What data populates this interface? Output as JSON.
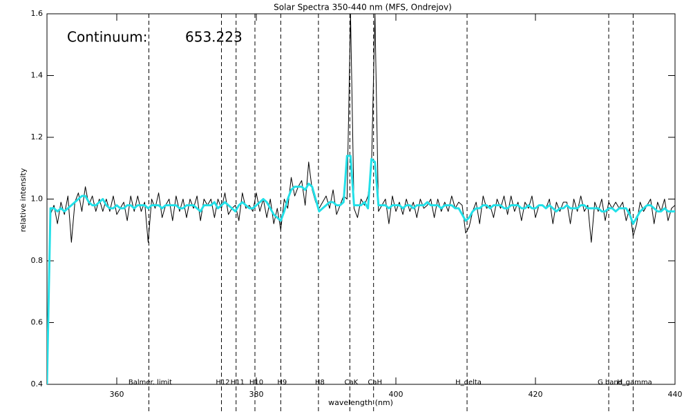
{
  "chart_data": {
    "type": "line",
    "title": "Solar Spectra 350-440 nm (MFS, Ondrejov)",
    "xlabel": "wavelength (nm)",
    "ylabel": "relative intensity",
    "annotations": [
      "Continuum:",
      "653.223"
    ],
    "xlim": [
      350,
      440
    ],
    "xticks": [
      360,
      380,
      400,
      420,
      440
    ],
    "ylim": [
      0.4,
      1.6
    ],
    "yticks": [
      0.4,
      0.6,
      0.8,
      {
        "value": 1,
        "label": "1.0"
      },
      1.2,
      1.4,
      1.6
    ],
    "lines": [
      {
        "label": "Balmer. limit",
        "x": 364.6
      },
      {
        "label": "H12",
        "x": 375.0
      },
      {
        "label": "H11",
        "x": 377.1
      },
      {
        "label": "H10",
        "x": 379.8
      },
      {
        "label": "H9",
        "x": 383.5
      },
      {
        "label": "H8",
        "x": 388.9
      },
      {
        "label": "CaK",
        "x": 393.4
      },
      {
        "label": "CaH",
        "x": 396.8
      },
      {
        "label": "H_delta",
        "x": 410.2
      },
      {
        "label": "G band",
        "x": 430.5
      },
      {
        "label": "H_gamma",
        "x": 434.0
      }
    ],
    "x": [
      350,
      350.5,
      351,
      351.5,
      352,
      352.5,
      353,
      353.5,
      354,
      354.5,
      355,
      355.5,
      356,
      356.5,
      357,
      357.5,
      358,
      358.5,
      359,
      359.5,
      360,
      360.5,
      361,
      361.5,
      362,
      362.5,
      363,
      363.5,
      364,
      364.5,
      365,
      365.5,
      366,
      366.5,
      367,
      367.5,
      368,
      368.5,
      369,
      369.5,
      370,
      370.5,
      371,
      371.5,
      372,
      372.5,
      373,
      373.5,
      374,
      374.5,
      375,
      375.5,
      376,
      376.5,
      377,
      377.5,
      378,
      378.5,
      379,
      379.5,
      380,
      380.5,
      381,
      381.5,
      382,
      382.5,
      383,
      383.5,
      384,
      384.5,
      385,
      385.5,
      386,
      386.5,
      387,
      387.5,
      388,
      388.5,
      389,
      389.5,
      390,
      390.5,
      391,
      391.5,
      392,
      392.5,
      393,
      393.5,
      394,
      394.5,
      395,
      395.5,
      396,
      396.5,
      397,
      397.5,
      398,
      398.5,
      399,
      399.5,
      400,
      400.5,
      401,
      401.5,
      402,
      402.5,
      403,
      403.5,
      404,
      404.5,
      405,
      405.5,
      406,
      406.5,
      407,
      407.5,
      408,
      408.5,
      409,
      409.5,
      410,
      410.5,
      411,
      411.5,
      412,
      412.5,
      413,
      413.5,
      414,
      414.5,
      415,
      415.5,
      416,
      416.5,
      417,
      417.5,
      418,
      418.5,
      419,
      419.5,
      420,
      420.5,
      421,
      421.5,
      422,
      422.5,
      423,
      423.5,
      424,
      424.5,
      425,
      425.5,
      426,
      426.5,
      427,
      427.5,
      428,
      428.5,
      429,
      429.5,
      430,
      430.5,
      431,
      431.5,
      432,
      432.5,
      433,
      433.5,
      434,
      434.5,
      435,
      435.5,
      436,
      436.5,
      437,
      437.5,
      438,
      438.5,
      439,
      439.5,
      440
    ],
    "series": [
      {
        "color": "#000000",
        "values": [
          0.4,
          0.95,
          0.98,
          0.92,
          0.99,
          0.95,
          1.01,
          0.86,
          0.99,
          1.02,
          0.96,
          1.04,
          0.98,
          1.01,
          0.96,
          1.0,
          0.96,
          1.0,
          0.96,
          1.01,
          0.95,
          0.97,
          0.99,
          0.93,
          1.01,
          0.96,
          1.01,
          0.96,
          0.99,
          0.86,
          1.0,
          0.97,
          1.02,
          0.94,
          0.98,
          1.0,
          0.93,
          1.01,
          0.96,
          1.0,
          0.94,
          1.0,
          0.97,
          1.01,
          0.93,
          1.0,
          0.98,
          1.0,
          0.94,
          1.0,
          0.97,
          1.02,
          0.95,
          0.97,
          0.98,
          0.93,
          1.02,
          0.97,
          0.98,
          0.96,
          1.02,
          0.96,
          1.0,
          0.94,
          1.0,
          0.92,
          0.97,
          0.9,
          1.0,
          0.97,
          1.07,
          1.01,
          1.04,
          1.06,
          0.98,
          1.12,
          1.03,
          0.99,
          0.97,
          0.99,
          1.01,
          0.97,
          1.03,
          0.95,
          0.98,
          1.01,
          1.0,
          1.6,
          0.97,
          0.94,
          1.0,
          0.98,
          1.01,
          1.1,
          1.6,
          0.96,
          0.98,
          1.0,
          0.92,
          1.01,
          0.96,
          0.99,
          0.95,
          1.0,
          0.96,
          0.99,
          0.94,
          1.0,
          0.97,
          0.98,
          1.0,
          0.94,
          1.0,
          0.96,
          0.99,
          0.96,
          1.01,
          0.97,
          0.99,
          0.98,
          0.89,
          0.91,
          0.96,
          0.99,
          0.92,
          1.01,
          0.97,
          0.98,
          0.94,
          1.0,
          0.97,
          1.01,
          0.95,
          1.01,
          0.96,
          0.99,
          0.93,
          0.99,
          0.97,
          1.01,
          0.94,
          0.98,
          0.98,
          0.97,
          1.0,
          0.92,
          0.99,
          0.96,
          0.99,
          0.99,
          0.92,
          1.0,
          0.96,
          1.01,
          0.96,
          0.98,
          0.86,
          0.99,
          0.96,
          1.0,
          0.93,
          0.99,
          0.97,
          0.99,
          0.97,
          0.99,
          0.93,
          0.97,
          0.88,
          0.92,
          0.99,
          0.96,
          0.98,
          1.0,
          0.92,
          0.99,
          0.96,
          1.0,
          0.93,
          0.97,
          0.98
        ]
      },
      {
        "color": "#22e0e8",
        "values": [
          0.4,
          0.97,
          0.97,
          0.96,
          0.97,
          0.96,
          0.97,
          0.98,
          0.99,
          1.0,
          1.01,
          1.01,
          0.99,
          0.98,
          0.98,
          0.99,
          1.0,
          0.98,
          0.97,
          0.97,
          0.98,
          0.97,
          0.97,
          0.98,
          0.98,
          0.97,
          0.98,
          0.98,
          0.98,
          0.97,
          0.98,
          0.98,
          0.98,
          0.97,
          0.98,
          0.98,
          0.98,
          0.98,
          0.97,
          0.97,
          0.98,
          0.98,
          0.98,
          0.97,
          0.96,
          0.98,
          0.98,
          0.98,
          0.99,
          0.97,
          0.98,
          0.99,
          0.98,
          0.97,
          0.96,
          0.98,
          0.99,
          0.98,
          0.97,
          0.97,
          0.98,
          0.99,
          1.0,
          0.99,
          0.97,
          0.95,
          0.94,
          0.93,
          0.96,
          1.0,
          1.03,
          1.04,
          1.04,
          1.04,
          1.03,
          1.05,
          1.04,
          1.0,
          0.96,
          0.97,
          0.98,
          0.99,
          0.99,
          0.98,
          0.98,
          0.99,
          1.14,
          1.14,
          0.98,
          0.98,
          0.98,
          0.99,
          0.97,
          1.13,
          1.12,
          0.98,
          0.98,
          0.98,
          0.97,
          0.98,
          0.98,
          0.98,
          0.97,
          0.98,
          0.98,
          0.97,
          0.98,
          0.98,
          0.98,
          0.99,
          0.98,
          0.98,
          0.98,
          0.97,
          0.98,
          0.98,
          0.98,
          0.97,
          0.97,
          0.95,
          0.93,
          0.94,
          0.96,
          0.97,
          0.97,
          0.98,
          0.98,
          0.97,
          0.98,
          0.98,
          0.98,
          0.97,
          0.97,
          0.98,
          0.98,
          0.98,
          0.97,
          0.97,
          0.98,
          0.97,
          0.97,
          0.98,
          0.98,
          0.97,
          0.98,
          0.97,
          0.96,
          0.97,
          0.97,
          0.98,
          0.97,
          0.97,
          0.97,
          0.98,
          0.98,
          0.97,
          0.97,
          0.97,
          0.97,
          0.96,
          0.96,
          0.97,
          0.97,
          0.96,
          0.97,
          0.97,
          0.97,
          0.95,
          0.92,
          0.94,
          0.96,
          0.97,
          0.98,
          0.98,
          0.97,
          0.96,
          0.96,
          0.97,
          0.96,
          0.96,
          0.96
        ]
      }
    ]
  }
}
